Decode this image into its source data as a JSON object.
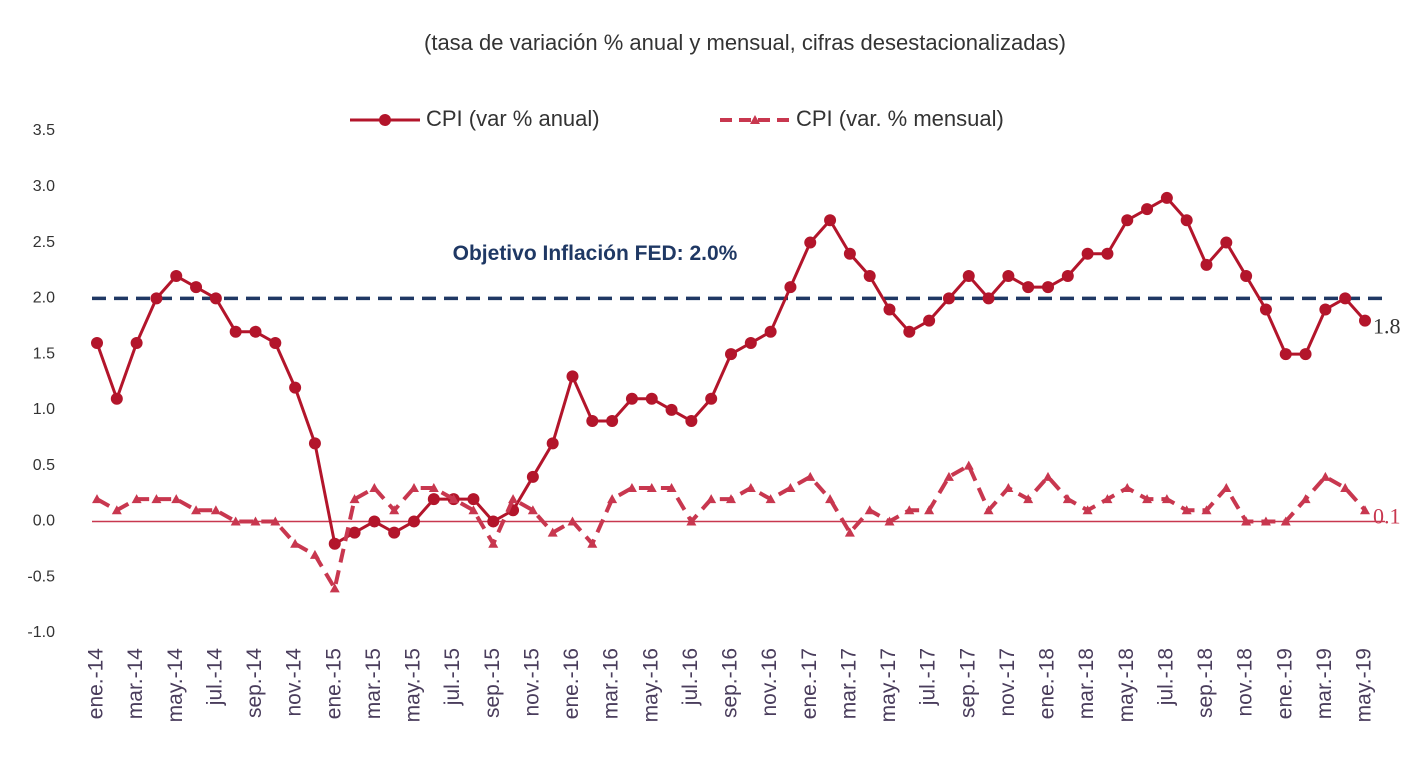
{
  "chart_data": {
    "type": "line",
    "subtitle": "(tasa de variación % anual y mensual, cifras desestacionalizadas)",
    "categories": [
      "ene.-14",
      null,
      "mar.-14",
      null,
      "may.-14",
      null,
      "jul.-14",
      null,
      "sep.-14",
      null,
      "nov.-14",
      null,
      "ene.-15",
      null,
      "mar.-15",
      null,
      "may.-15",
      null,
      "jul.-15",
      null,
      "sep.-15",
      null,
      "nov.-15",
      null,
      "ene.-16",
      null,
      "mar.-16",
      null,
      "may.-16",
      null,
      "jul.-16",
      null,
      "sep.-16",
      null,
      "nov.-16",
      null,
      "ene.-17",
      null,
      "mar.-17",
      null,
      "may.-17",
      null,
      "jul.-17",
      null,
      "sep.-17",
      null,
      "nov.-17",
      null,
      "ene.-18",
      null,
      "mar.-18",
      null,
      "may.-18",
      null,
      "jul.-18",
      null,
      "sep.-18",
      null,
      "nov.-18",
      null,
      "ene.-19",
      null,
      "mar.-19",
      null,
      "may.-19"
    ],
    "series": [
      {
        "name": "CPI (var % anual)",
        "color": "#b3152b",
        "style": "solid",
        "values": [
          1.6,
          1.1,
          1.6,
          2.0,
          2.2,
          2.1,
          2.0,
          1.7,
          1.7,
          1.6,
          1.2,
          0.7,
          -0.2,
          -0.1,
          0.0,
          -0.1,
          0.0,
          0.2,
          0.2,
          0.2,
          0.0,
          0.1,
          0.4,
          0.7,
          1.3,
          0.9,
          0.9,
          1.1,
          1.1,
          1.0,
          0.9,
          1.1,
          1.5,
          1.6,
          1.7,
          2.1,
          2.5,
          2.7,
          2.4,
          2.2,
          1.9,
          1.7,
          1.8,
          2.0,
          2.2,
          2.0,
          2.2,
          2.1,
          2.1,
          2.2,
          2.4,
          2.4,
          2.7,
          2.8,
          2.9,
          2.7,
          2.3,
          2.5,
          2.2,
          1.9,
          1.5,
          1.5,
          1.9,
          2.0,
          1.8
        ]
      },
      {
        "name": "CPI (var. % mensual)",
        "color": "#c8374f",
        "style": "dashed",
        "values": [
          0.2,
          0.1,
          0.2,
          0.2,
          0.2,
          0.1,
          0.1,
          0.0,
          0.0,
          0.0,
          -0.2,
          -0.3,
          -0.6,
          0.2,
          0.3,
          0.1,
          0.3,
          0.3,
          0.2,
          0.1,
          -0.2,
          0.2,
          0.1,
          -0.1,
          0.0,
          -0.2,
          0.2,
          0.3,
          0.3,
          0.3,
          0.0,
          0.2,
          0.2,
          0.3,
          0.2,
          0.3,
          0.4,
          0.2,
          -0.1,
          0.1,
          0.0,
          0.1,
          0.1,
          0.4,
          0.5,
          0.1,
          0.3,
          0.2,
          0.4,
          0.2,
          0.1,
          0.2,
          0.3,
          0.2,
          0.2,
          0.1,
          0.1,
          0.3,
          0.0,
          0.0,
          0.0,
          0.2,
          0.4,
          0.3,
          0.1
        ]
      }
    ],
    "target": {
      "value": 2.0,
      "label": "Objetivo Inflación FED: 2.0%",
      "color": "#1f3864"
    },
    "ylim": [
      -1.0,
      3.5
    ],
    "yticks": [
      {
        "value": -1.0,
        "label": "-1.0"
      },
      -0.5,
      {
        "value": 0,
        "label": "0.0"
      },
      0.5,
      {
        "value": 1,
        "label": "1.0"
      },
      1.5,
      {
        "value": 2,
        "label": "2.0"
      },
      2.5,
      {
        "value": 3,
        "label": "3.0"
      },
      3.5
    ],
    "grid": false
  }
}
